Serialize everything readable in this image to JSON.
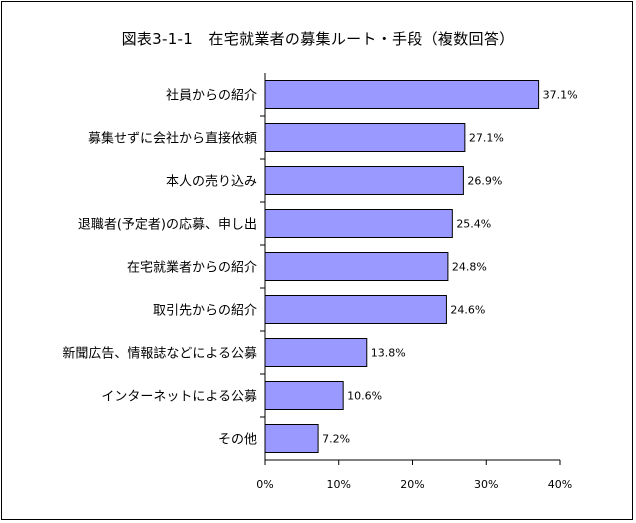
{
  "chart_data": {
    "type": "bar",
    "orientation": "horizontal",
    "title": "図表3-1-1　在宅就業者の募集ルート・手段（複数回答）",
    "categories": [
      "社員からの紹介",
      "募集せずに会社から直接依頼",
      "本人の売り込み",
      "退職者(予定者)の応募、申し出",
      "在宅就業者からの紹介",
      "取引先からの紹介",
      "新聞広告、情報誌などによる公募",
      "インターネットによる公募",
      "その他"
    ],
    "values": [
      37.1,
      27.1,
      26.9,
      25.4,
      24.8,
      24.6,
      13.8,
      10.6,
      7.2
    ],
    "value_labels": [
      "37.1%",
      "27.1%",
      "26.9%",
      "25.4%",
      "24.8%",
      "24.6%",
      "13.8%",
      "10.6%",
      "7.2%"
    ],
    "xlim": [
      0,
      40
    ],
    "xticks": [
      0,
      10,
      20,
      30,
      40
    ],
    "xtick_labels": [
      "0%",
      "10%",
      "20%",
      "30%",
      "40%"
    ],
    "grid": false,
    "bar_color": "#9999ff",
    "bar_edge_color": "#000000"
  }
}
